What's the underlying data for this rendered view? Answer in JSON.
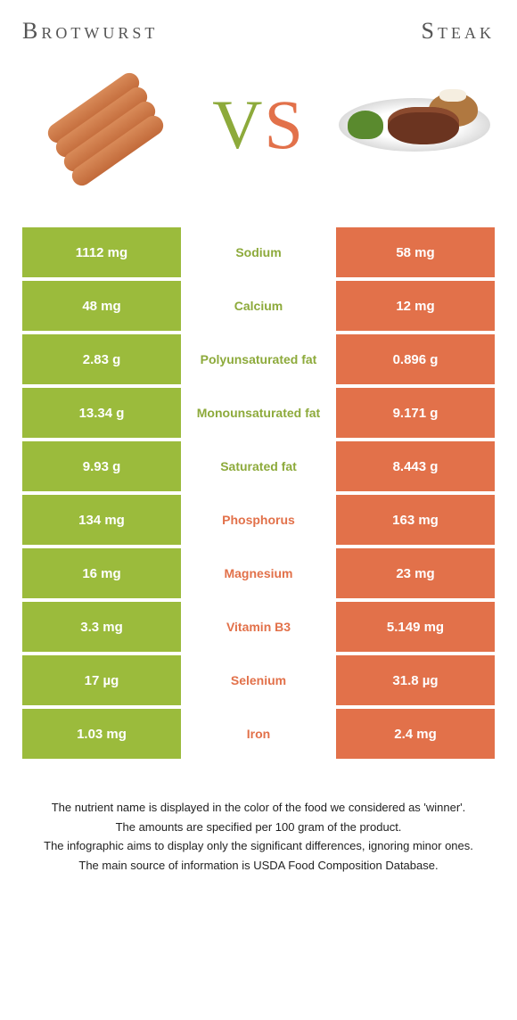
{
  "header": {
    "left_title": "Brotwurst",
    "right_title": "Steak"
  },
  "vs": {
    "v": "V",
    "s": "S"
  },
  "colors": {
    "green": "#9bbb3c",
    "orange": "#e2714a",
    "mid_green": "#8daa3b",
    "mid_orange": "#e2714a"
  },
  "rows": [
    {
      "left": "1112 mg",
      "label": "Sodium",
      "right": "58 mg",
      "winner": "left"
    },
    {
      "left": "48 mg",
      "label": "Calcium",
      "right": "12 mg",
      "winner": "left"
    },
    {
      "left": "2.83 g",
      "label": "Polyunsaturated fat",
      "right": "0.896 g",
      "winner": "left"
    },
    {
      "left": "13.34 g",
      "label": "Monounsaturated fat",
      "right": "9.171 g",
      "winner": "left"
    },
    {
      "left": "9.93 g",
      "label": "Saturated fat",
      "right": "8.443 g",
      "winner": "left"
    },
    {
      "left": "134 mg",
      "label": "Phosphorus",
      "right": "163 mg",
      "winner": "right"
    },
    {
      "left": "16 mg",
      "label": "Magnesium",
      "right": "23 mg",
      "winner": "right"
    },
    {
      "left": "3.3 mg",
      "label": "Vitamin B3",
      "right": "5.149 mg",
      "winner": "right"
    },
    {
      "left": "17 µg",
      "label": "Selenium",
      "right": "31.8 µg",
      "winner": "right"
    },
    {
      "left": "1.03 mg",
      "label": "Iron",
      "right": "2.4 mg",
      "winner": "right"
    }
  ],
  "footer": {
    "line1": "The nutrient name is displayed in the color of the food we considered as 'winner'.",
    "line2": "The amounts are specified per 100 gram of the product.",
    "line3": "The infographic aims to display only the significant differences, ignoring minor ones.",
    "line4": "The main source of information is USDA Food Composition Database."
  }
}
